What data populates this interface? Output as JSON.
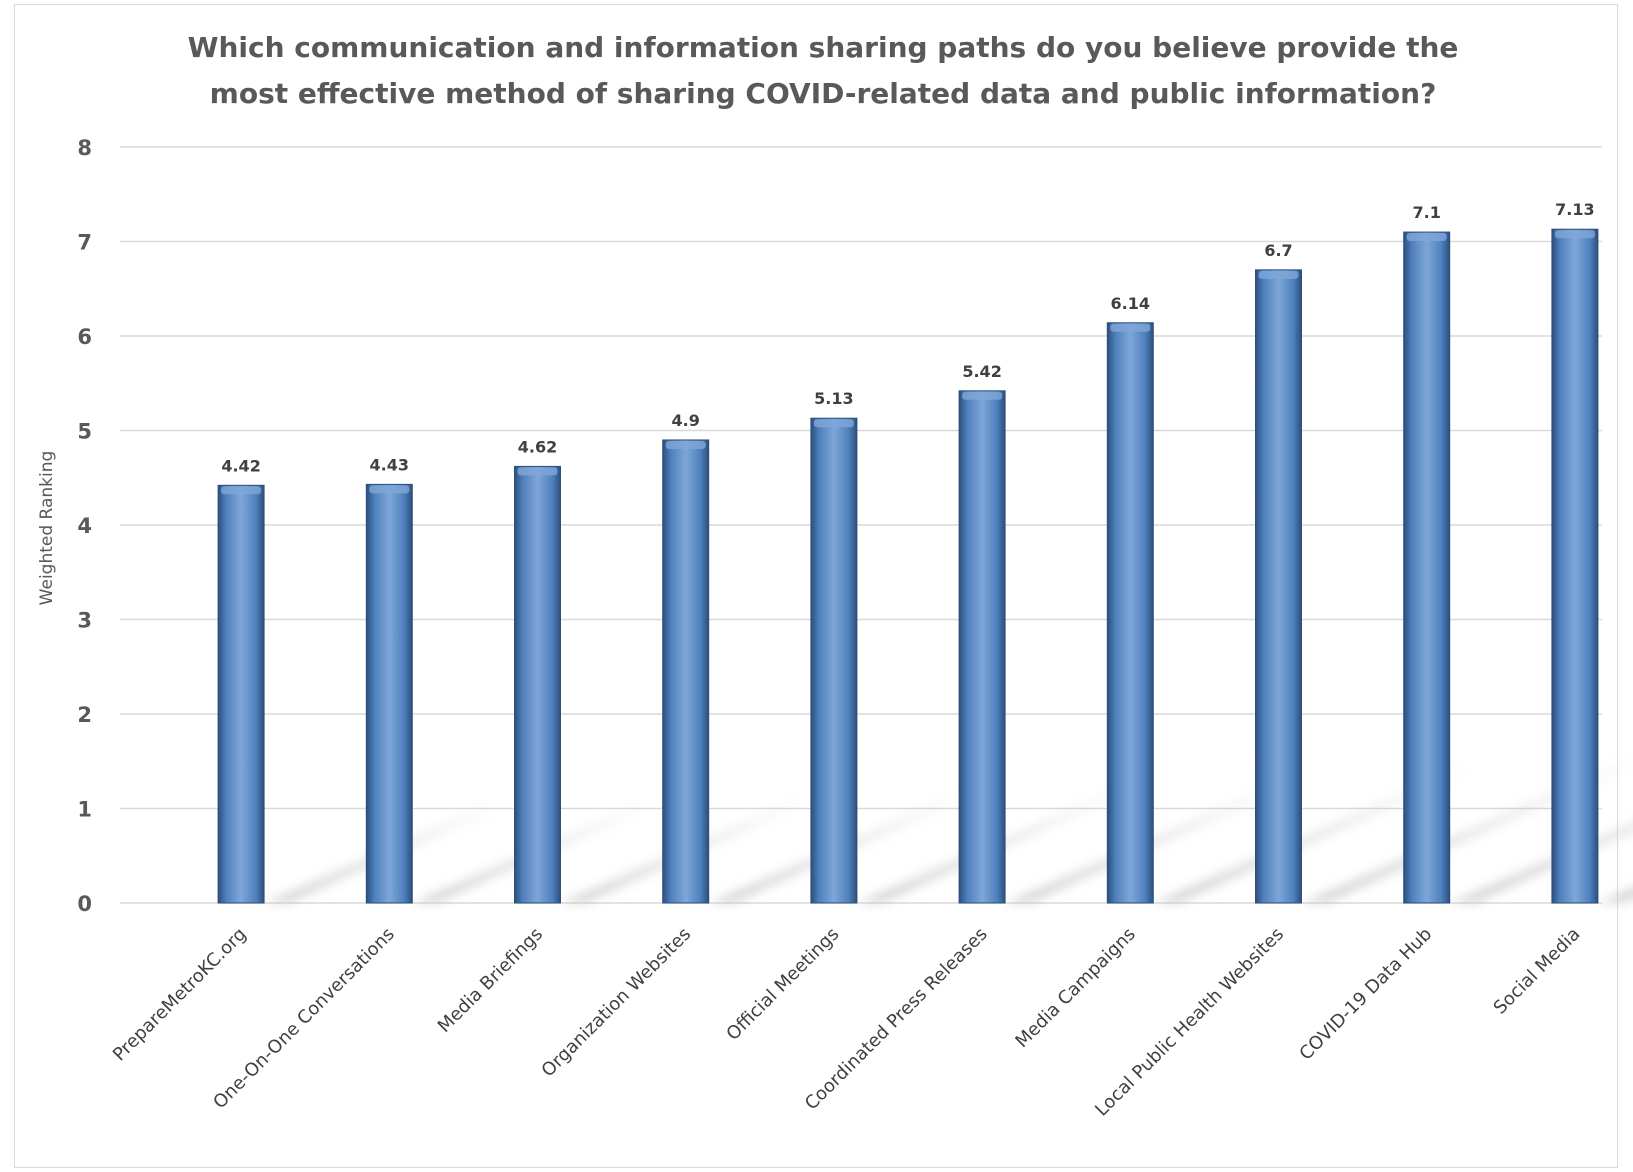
{
  "colors": {
    "bar": "#4f81bd",
    "bar_dark": "#2c4f7c",
    "bar_light": "#7fa6d8",
    "grid": "#d9d9d9",
    "text": "#595959"
  },
  "chart_data": {
    "type": "bar",
    "title_lines": [
      "Which communication and information sharing paths do you believe provide the",
      "most effective method of sharing COVID-related data and public information?"
    ],
    "xlabel": "",
    "ylabel": "Weighted Ranking",
    "ylim": [
      0,
      8
    ],
    "yticks": [
      0,
      1,
      2,
      3,
      4,
      5,
      6,
      7,
      8
    ],
    "grid": true,
    "legend": "none",
    "categories": [
      "PrepareMetroKC.org",
      "One-On-One Conversations",
      "Media Briefings",
      "Organization Websites",
      "Official Meetings",
      "Coordinated Press Releases",
      "Media Campaigns",
      "Local Public Health Websites",
      "COVID-19 Data Hub",
      "Social Media"
    ],
    "values": [
      4.42,
      4.43,
      4.62,
      4.9,
      5.13,
      5.42,
      6.14,
      6.7,
      7.1,
      7.13
    ],
    "data_labels": [
      "4.42",
      "4.43",
      "4.62",
      "4.9",
      "5.13",
      "5.42",
      "6.14",
      "6.7",
      "7.1",
      "7.13"
    ]
  }
}
